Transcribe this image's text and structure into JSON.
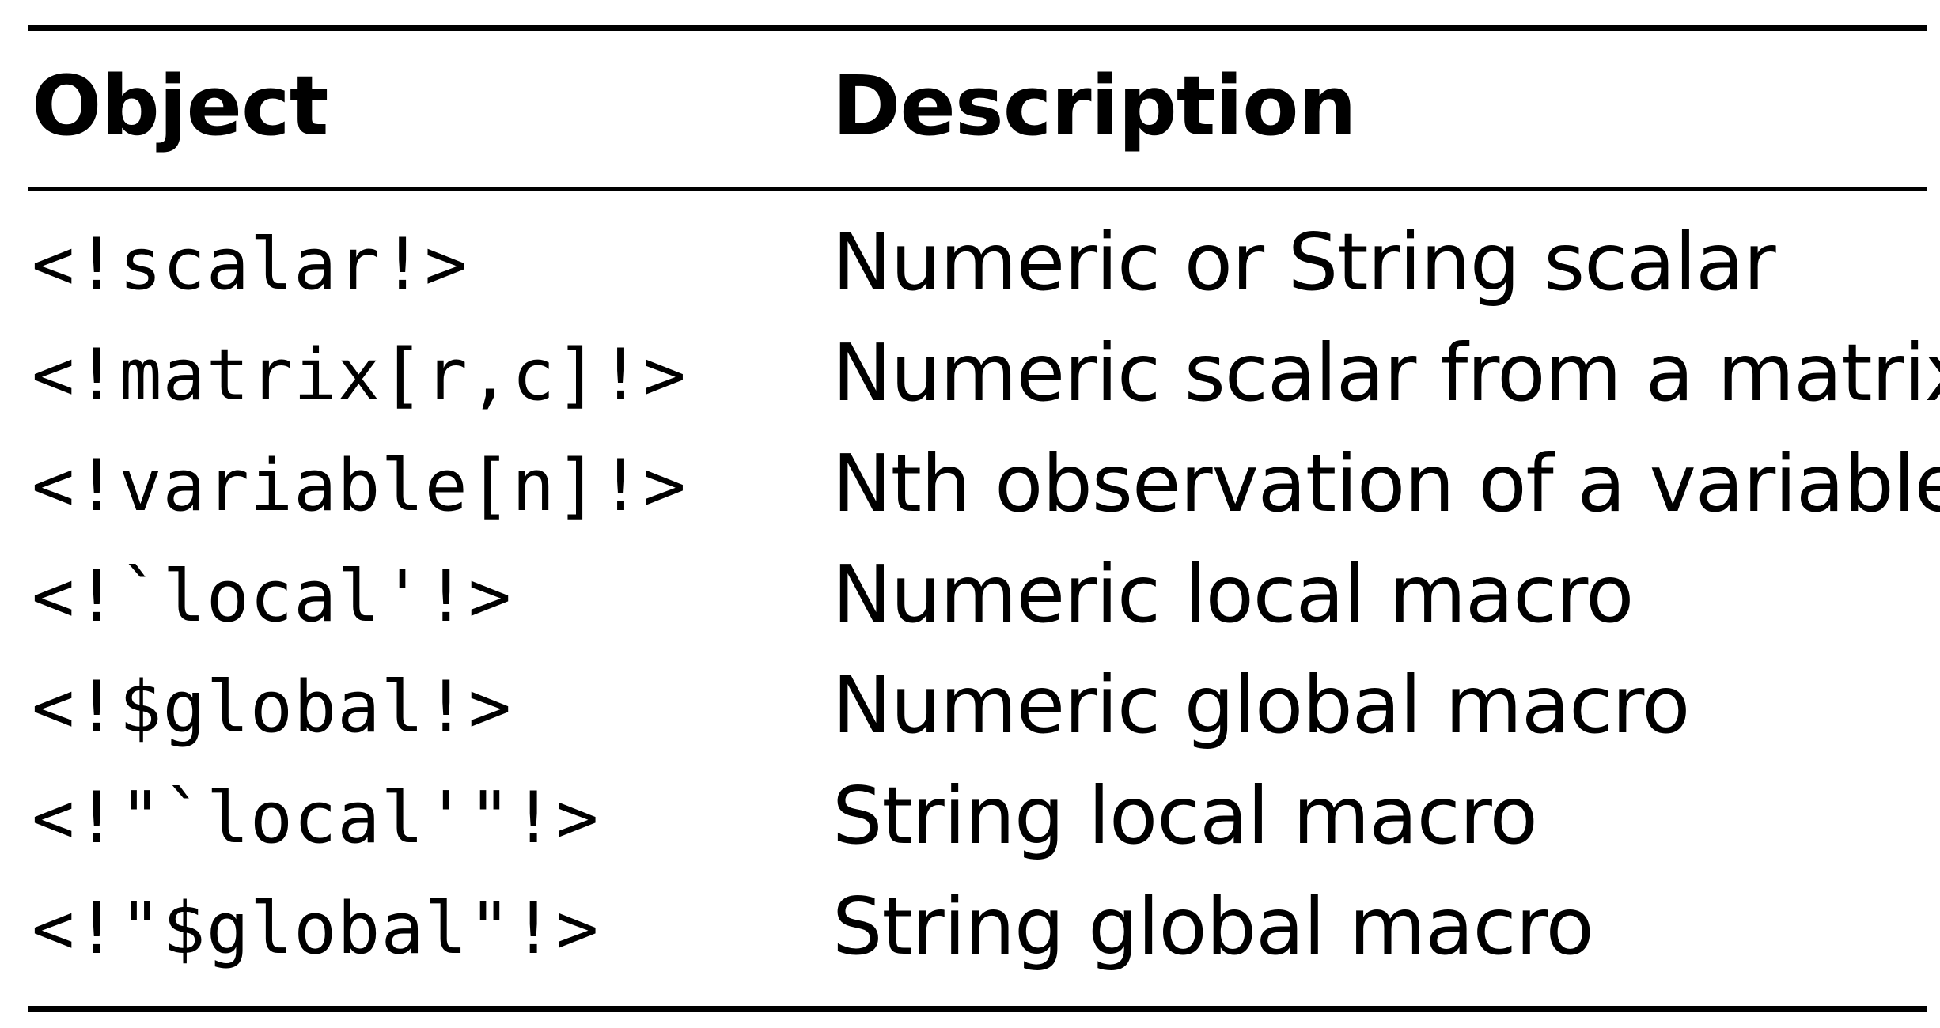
{
  "table": {
    "headers": {
      "object": "Object",
      "description": "Description"
    },
    "rows": [
      {
        "object": "<!scalar!>",
        "description": "Numeric or String scalar"
      },
      {
        "object": "<!matrix[r,c]!>",
        "description": "Numeric scalar from a matrix"
      },
      {
        "object": "<!variable[n]!>",
        "description": "Nth observation of a variable"
      },
      {
        "object": "<!`local'!>",
        "description": "Numeric local macro"
      },
      {
        "object": "<!$global!>",
        "description": "Numeric global macro"
      },
      {
        "object": "<!\"`local'\"!>",
        "description": "String local macro"
      },
      {
        "object": "<!\"$global\"!>",
        "description": "String global macro"
      }
    ]
  }
}
